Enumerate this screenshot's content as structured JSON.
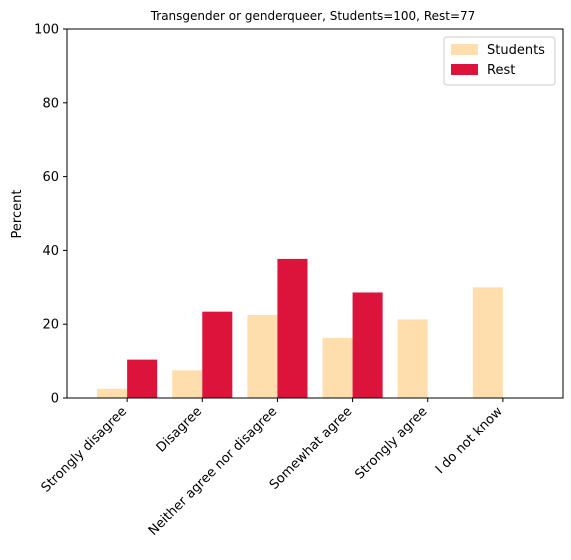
{
  "chart_data": {
    "type": "bar",
    "title": "Transgender or genderqueer, Students=100, Rest=77",
    "xlabel": "",
    "ylabel": "Percent",
    "ylim": [
      0,
      100
    ],
    "yticks": [
      0,
      20,
      40,
      60,
      80,
      100
    ],
    "categories": [
      "Strongly disagree",
      "Disagree",
      "Neither agree nor disagree",
      "Somewhat agree",
      "Strongly agree",
      "I do not know"
    ],
    "series": [
      {
        "name": "Students",
        "color": "#ffdead",
        "values": [
          2.5,
          7.5,
          22.5,
          16.3,
          21.3,
          30.0
        ]
      },
      {
        "name": "Rest",
        "color": "#dc143c",
        "values": [
          10.4,
          23.4,
          37.7,
          28.6,
          0.0,
          0.0
        ]
      }
    ],
    "legend_position": "top-right",
    "grid": false
  }
}
